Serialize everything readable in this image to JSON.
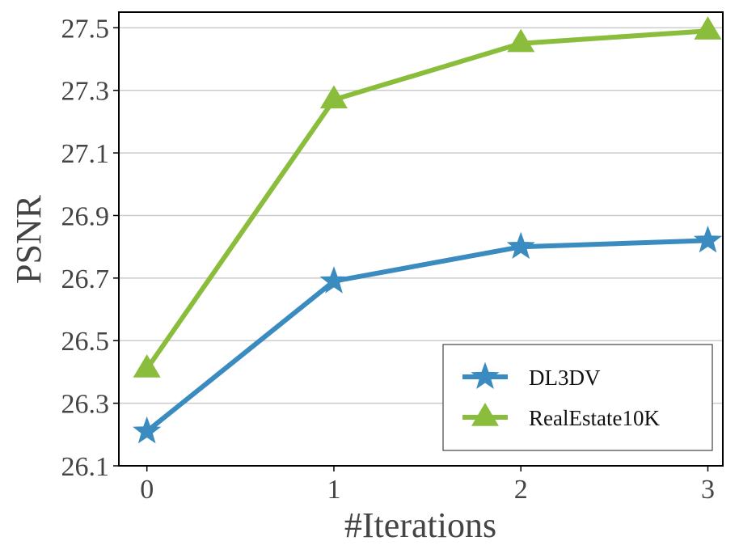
{
  "chart_data": {
    "type": "line",
    "title": "",
    "xlabel": "#Iterations",
    "ylabel": "PSNR",
    "x": [
      0,
      1,
      2,
      3
    ],
    "xlim": [
      -0.15,
      3.08
    ],
    "ylim": [
      26.1,
      27.55
    ],
    "xticks": [
      "0",
      "1",
      "2",
      "3"
    ],
    "yticks": [
      "26.1",
      "26.3",
      "26.5",
      "26.7",
      "26.9",
      "27.1",
      "27.3",
      "27.5"
    ],
    "grid": "horizontal",
    "legend_position": "lower-right",
    "series": [
      {
        "name": "DL3DV",
        "marker": "star",
        "color": "#3a8bbf",
        "values": [
          26.21,
          26.69,
          26.8,
          26.82
        ]
      },
      {
        "name": "RealEstate10K",
        "marker": "triangle",
        "color": "#8bbd3c",
        "values": [
          26.41,
          27.27,
          27.45,
          27.49
        ]
      }
    ]
  }
}
